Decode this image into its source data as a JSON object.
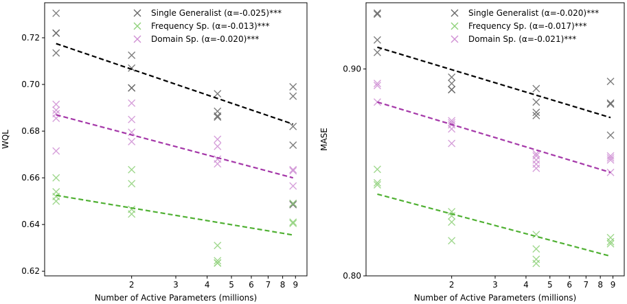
{
  "series_styles": [
    {
      "key": "single",
      "color": "#666666",
      "fit_color": "#000000"
    },
    {
      "key": "frequency",
      "color": "#8fd17a",
      "fit_color": "#4fb032"
    },
    {
      "key": "domain",
      "color": "#cf8fd3",
      "fit_color": "#a436a8"
    }
  ],
  "chart_data": [
    {
      "type": "scatter",
      "title": "",
      "xlabel": "Number of Active Parameters (millions)",
      "ylabel": "WQL",
      "xscale": "log",
      "xlim": [
        0.9,
        10
      ],
      "ylim": [
        0.618,
        0.735
      ],
      "xticks": [
        2,
        3,
        4,
        5,
        6,
        7,
        8,
        9
      ],
      "yticks": [
        0.62,
        0.64,
        0.66,
        0.68,
        0.7,
        0.72
      ],
      "ytick_labels": [
        "0.62",
        "0.64",
        "0.66",
        "0.68",
        "0.70",
        "0.72"
      ],
      "legend_position": "top-right",
      "series": [
        {
          "name": "Single Generalist (α=-0.025)***",
          "points": [
            [
              1,
              0.7305
            ],
            [
              1,
              0.722
            ],
            [
              1,
              0.722
            ],
            [
              1,
              0.7135
            ],
            [
              2,
              0.7125
            ],
            [
              2,
              0.707
            ],
            [
              2,
              0.6985
            ],
            [
              2,
              0.6985
            ],
            [
              4.4,
              0.696
            ],
            [
              4.4,
              0.6885
            ],
            [
              4.4,
              0.6865
            ],
            [
              4.4,
              0.686
            ],
            [
              8.8,
              0.699
            ],
            [
              8.8,
              0.695
            ],
            [
              8.8,
              0.682
            ],
            [
              8.8,
              0.674
            ],
            [
              8.8,
              0.649
            ],
            [
              8.8,
              0.6485
            ]
          ],
          "fit": [
            [
              1,
              0.7175
            ],
            [
              8.8,
              0.683
            ]
          ]
        },
        {
          "name": "Frequency Sp. (α=-0.013)***",
          "points": [
            [
              1,
              0.66
            ],
            [
              1,
              0.654
            ],
            [
              1,
              0.652
            ],
            [
              1,
              0.65
            ],
            [
              2,
              0.6635
            ],
            [
              2,
              0.6575
            ],
            [
              2,
              0.6465
            ],
            [
              2,
              0.6445
            ],
            [
              4.4,
              0.631
            ],
            [
              4.4,
              0.6245
            ],
            [
              4.4,
              0.6235
            ],
            [
              4.4,
              0.6235
            ],
            [
              8.8,
              0.649
            ],
            [
              8.8,
              0.641
            ],
            [
              8.8,
              0.6405
            ]
          ],
          "fit": [
            [
              1,
              0.6525
            ],
            [
              8.8,
              0.6355
            ]
          ]
        },
        {
          "name": "Domain Sp. (α=-0.020)***",
          "points": [
            [
              1,
              0.6915
            ],
            [
              1,
              0.689
            ],
            [
              1,
              0.6875
            ],
            [
              1,
              0.6855
            ],
            [
              1,
              0.6715
            ],
            [
              2,
              0.692
            ],
            [
              2,
              0.685
            ],
            [
              2,
              0.6795
            ],
            [
              2,
              0.6755
            ],
            [
              4.4,
              0.6765
            ],
            [
              4.4,
              0.6735
            ],
            [
              4.4,
              0.668
            ],
            [
              4.4,
              0.666
            ],
            [
              8.8,
              0.6635
            ],
            [
              8.8,
              0.663
            ],
            [
              8.8,
              0.6565
            ]
          ],
          "fit": [
            [
              1,
              0.687
            ],
            [
              8.8,
              0.66
            ]
          ]
        }
      ]
    },
    {
      "type": "scatter",
      "title": "",
      "xlabel": "Number of Active Parameters (millions)",
      "ylabel": "MASE",
      "xscale": "log",
      "xlim": [
        0.9,
        10
      ],
      "ylim": [
        0.8,
        0.932
      ],
      "xticks": [
        2,
        3,
        4,
        5,
        6,
        7,
        8,
        9
      ],
      "yticks": [
        0.8,
        0.9
      ],
      "ytick_labels": [
        "0.80",
        "0.90"
      ],
      "legend_position": "top-right",
      "series": [
        {
          "name": "Single Generalist (α=-0.020)***",
          "points": [
            [
              1,
              0.927
            ],
            [
              1,
              0.9265
            ],
            [
              1,
              0.914
            ],
            [
              1,
              0.908
            ],
            [
              2,
              0.896
            ],
            [
              2,
              0.893
            ],
            [
              2,
              0.89
            ],
            [
              2,
              0.89
            ],
            [
              4.4,
              0.8905
            ],
            [
              4.4,
              0.884
            ],
            [
              4.4,
              0.879
            ],
            [
              4.4,
              0.8775
            ],
            [
              8.8,
              0.894
            ],
            [
              8.8,
              0.8835
            ],
            [
              8.8,
              0.883
            ],
            [
              8.8,
              0.868
            ]
          ],
          "fit": [
            [
              1,
              0.9105
            ],
            [
              8.8,
              0.8765
            ]
          ]
        },
        {
          "name": "Frequency Sp. (α=-0.017)***",
          "points": [
            [
              1,
              0.8515
            ],
            [
              1,
              0.845
            ],
            [
              1,
              0.844
            ],
            [
              2,
              0.831
            ],
            [
              2,
              0.829
            ],
            [
              2,
              0.826
            ],
            [
              2,
              0.817
            ],
            [
              4.4,
              0.82
            ],
            [
              4.4,
              0.813
            ],
            [
              4.4,
              0.808
            ],
            [
              4.4,
              0.806
            ],
            [
              8.8,
              0.8185
            ],
            [
              8.8,
              0.8165
            ],
            [
              8.8,
              0.8155
            ]
          ],
          "fit": [
            [
              1,
              0.8395
            ],
            [
              8.8,
              0.8095
            ]
          ]
        },
        {
          "name": "Domain Sp. (α=-0.021)***",
          "points": [
            [
              1,
              0.893
            ],
            [
              1,
              0.892
            ],
            [
              1,
              0.884
            ],
            [
              2,
              0.875
            ],
            [
              2,
              0.874
            ],
            [
              2,
              0.873
            ],
            [
              2,
              0.871
            ],
            [
              2,
              0.864
            ],
            [
              4.4,
              0.859
            ],
            [
              4.4,
              0.858
            ],
            [
              4.4,
              0.856
            ],
            [
              4.4,
              0.854
            ],
            [
              4.4,
              0.852
            ],
            [
              8.8,
              0.858
            ],
            [
              8.8,
              0.857
            ],
            [
              8.8,
              0.856
            ],
            [
              8.8,
              0.85
            ]
          ],
          "fit": [
            [
              1,
              0.884
            ],
            [
              8.8,
              0.85
            ]
          ]
        }
      ]
    }
  ]
}
